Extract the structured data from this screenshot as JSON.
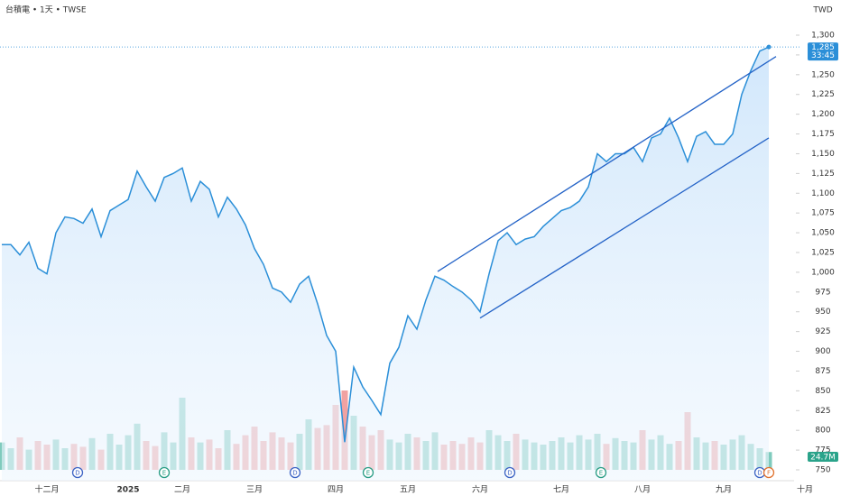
{
  "chart_data": {
    "type": "line",
    "title": "台積電 • 1天 • TWSE",
    "currency": "TWD",
    "categories": [
      null,
      null,
      null,
      null,
      null,
      "十二月",
      null,
      null,
      null,
      null,
      null,
      null,
      null,
      null,
      "2025",
      null,
      null,
      null,
      null,
      null,
      "二月",
      null,
      null,
      null,
      null,
      null,
      null,
      null,
      "三月",
      null,
      null,
      null,
      null,
      null,
      null,
      null,
      null,
      "四月",
      null,
      null,
      null,
      null,
      null,
      null,
      null,
      "五月",
      null,
      null,
      null,
      null,
      null,
      null,
      null,
      "六月",
      null,
      null,
      null,
      null,
      null,
      null,
      null,
      null,
      "七月",
      null,
      null,
      null,
      null,
      null,
      null,
      null,
      null,
      "八月",
      null,
      null,
      null,
      null,
      null,
      null,
      null,
      null,
      "九月",
      null,
      null,
      null,
      null,
      null,
      null,
      null,
      null,
      "十月"
    ],
    "series": [
      {
        "name": "台積電",
        "color": "#2b8fd8",
        "values": [
          1035,
          1035,
          1022,
          1038,
          1005,
          998,
          1050,
          1070,
          1068,
          1062,
          1080,
          1045,
          1078,
          1085,
          1092,
          1128,
          1108,
          1090,
          1120,
          1125,
          1132,
          1090,
          1115,
          1105,
          1070,
          1095,
          1080,
          1060,
          1030,
          1010,
          980,
          975,
          962,
          985,
          995,
          960,
          920,
          900,
          785,
          880,
          855,
          838,
          820,
          885,
          905,
          945,
          928,
          965,
          995,
          990,
          982,
          975,
          965,
          950,
          998,
          1040,
          1050,
          1035,
          1042,
          1045,
          1058,
          1068,
          1078,
          1082,
          1090,
          1108,
          1150,
          1140,
          1150,
          1150,
          1158,
          1140,
          1170,
          1175,
          1195,
          1170,
          1140,
          1172,
          1178,
          1162,
          1162,
          1175,
          1225,
          1255,
          1280,
          1285,
          null,
          null,
          null,
          null
        ]
      },
      {
        "name": "成交量",
        "axis": "y2",
        "up_color": "#7fcbbd",
        "down_color": "#f0a2a2",
        "values": [
          38,
          30,
          45,
          28,
          40,
          35,
          42,
          30,
          36,
          32,
          44,
          28,
          50,
          35,
          48,
          64,
          40,
          33,
          52,
          38,
          100,
          45,
          38,
          42,
          30,
          55,
          36,
          48,
          60,
          40,
          52,
          45,
          38,
          50,
          70,
          58,
          62,
          90,
          110,
          75,
          60,
          48,
          55,
          42,
          38,
          50,
          45,
          40,
          52,
          35,
          40,
          36,
          45,
          38,
          55,
          48,
          40,
          50,
          42,
          38,
          35,
          40,
          45,
          38,
          48,
          42,
          50,
          36,
          44,
          40,
          38,
          55,
          42,
          48,
          36,
          40,
          80,
          45,
          38,
          40,
          35,
          42,
          48,
          36,
          30,
          24.7,
          null,
          null,
          null,
          null
        ]
      }
    ],
    "ylim": [
      750,
      1300
    ],
    "yticks": [
      {
        "value": 1300,
        "label": "1,300"
      },
      {
        "value": 1275,
        "label": "1,275"
      },
      {
        "value": 1250,
        "label": "1,250"
      },
      {
        "value": 1225,
        "label": "1,225"
      },
      {
        "value": 1200,
        "label": "1,200"
      },
      {
        "value": 1175,
        "label": "1,175"
      },
      {
        "value": 1150,
        "label": "1,150"
      },
      {
        "value": 1125,
        "label": "1,125"
      },
      {
        "value": 1100,
        "label": "1,100"
      },
      {
        "value": 1075,
        "label": "1,075"
      },
      {
        "value": 1050,
        "label": "1,050"
      },
      {
        "value": 1025,
        "label": "1,025"
      },
      {
        "value": 1000,
        "label": "1,000"
      },
      975,
      950,
      925,
      900,
      875,
      850,
      825,
      800,
      775,
      750
    ],
    "y2lim": [
      0,
      150
    ],
    "last_price": {
      "value": 1285,
      "label": "1,285",
      "countdown": "33:45"
    },
    "last_volume": {
      "value": 24.7,
      "label": "24.7M"
    },
    "channel": [
      {
        "start": [
          48.3,
          1001
        ],
        "end": [
          85.8,
          1273
        ]
      },
      {
        "start": [
          53,
          942
        ],
        "end": [
          85,
          1170
        ]
      }
    ],
    "events": [
      {
        "index": 8.4,
        "label": "D",
        "color": "#3b63c4"
      },
      {
        "index": 18,
        "label": "E",
        "color": "#2a9d85"
      },
      {
        "index": 32.5,
        "label": "D",
        "color": "#3b63c4"
      },
      {
        "index": 40.6,
        "label": "E",
        "color": "#2a9d85"
      },
      {
        "index": 56.3,
        "label": "D",
        "color": "#3b63c4"
      },
      {
        "index": 66.4,
        "label": "E",
        "color": "#2a9d85"
      },
      {
        "index": 84,
        "label": "D",
        "color": "#3b63c4"
      },
      {
        "index": 85,
        "label": "F",
        "color": "#e0722f"
      }
    ]
  }
}
